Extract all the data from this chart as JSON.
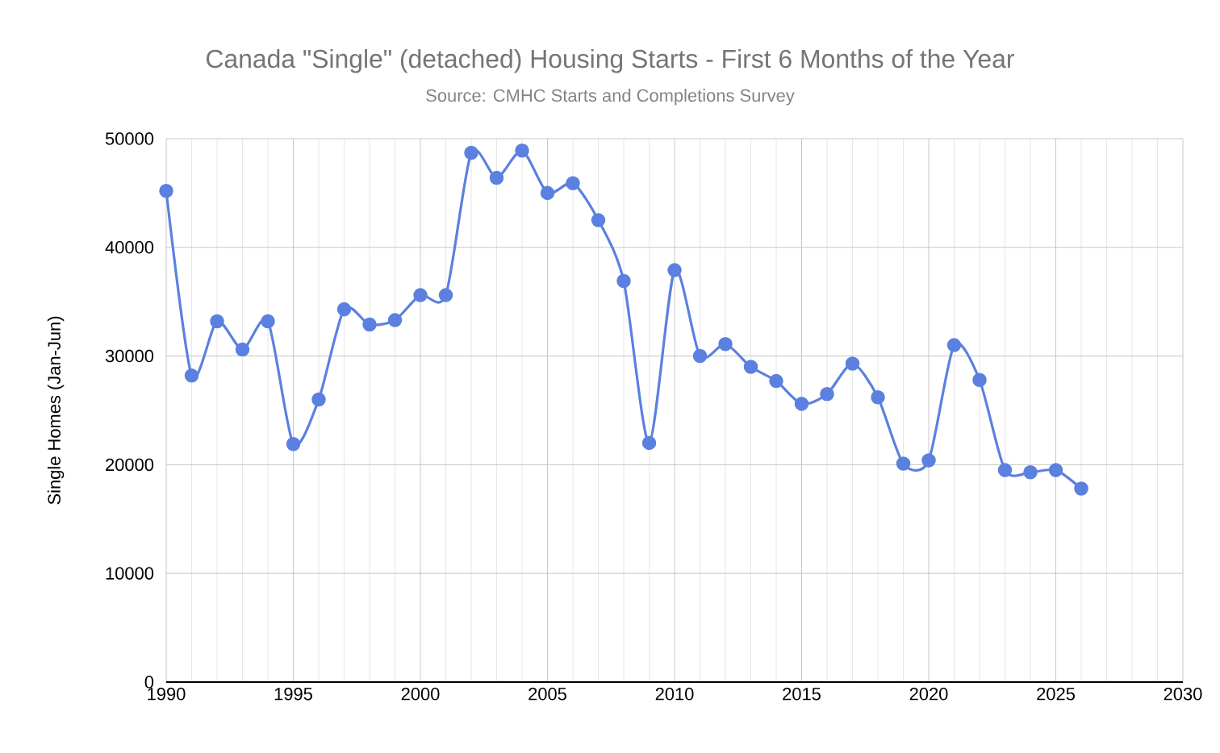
{
  "chart_data": {
    "type": "line",
    "title": "Canada \"Single\" (detached) Housing Starts - First 6 Months of the Year",
    "subtitle": "Source: CMHC Starts and Completions Survey",
    "ylabel": "Single Homes (Jan-Jun)",
    "x": [
      1990,
      1991,
      1992,
      1993,
      1994,
      1995,
      1996,
      1997,
      1998,
      1999,
      2000,
      2001,
      2002,
      2003,
      2004,
      2005,
      2006,
      2007,
      2008,
      2009,
      2010,
      2011,
      2012,
      2013,
      2014,
      2015,
      2016,
      2017,
      2018,
      2019,
      2020,
      2021,
      2022,
      2023,
      2024,
      2025,
      2026
    ],
    "series": [
      {
        "color": "#5b80e0",
        "values": [
          45200,
          28200,
          33200,
          30600,
          33200,
          21900,
          26000,
          34300,
          32900,
          33300,
          35600,
          35600,
          48700,
          46400,
          48900,
          45000,
          45900,
          42500,
          36900,
          22000,
          37900,
          30000,
          31100,
          29000,
          27700,
          25600,
          26500,
          29300,
          26200,
          20100,
          20400,
          31000,
          27800,
          19500,
          19300,
          19500,
          17800
        ]
      }
    ],
    "xlim": [
      1990,
      2030
    ],
    "xticks": [
      1990,
      1995,
      2000,
      2005,
      2010,
      2015,
      2020,
      2025,
      2030
    ],
    "ylim": [
      0,
      50000
    ],
    "yticks": [
      0,
      10000,
      20000,
      30000,
      40000,
      50000
    ],
    "grid": true,
    "marker": "circle",
    "line_style": "solid"
  }
}
